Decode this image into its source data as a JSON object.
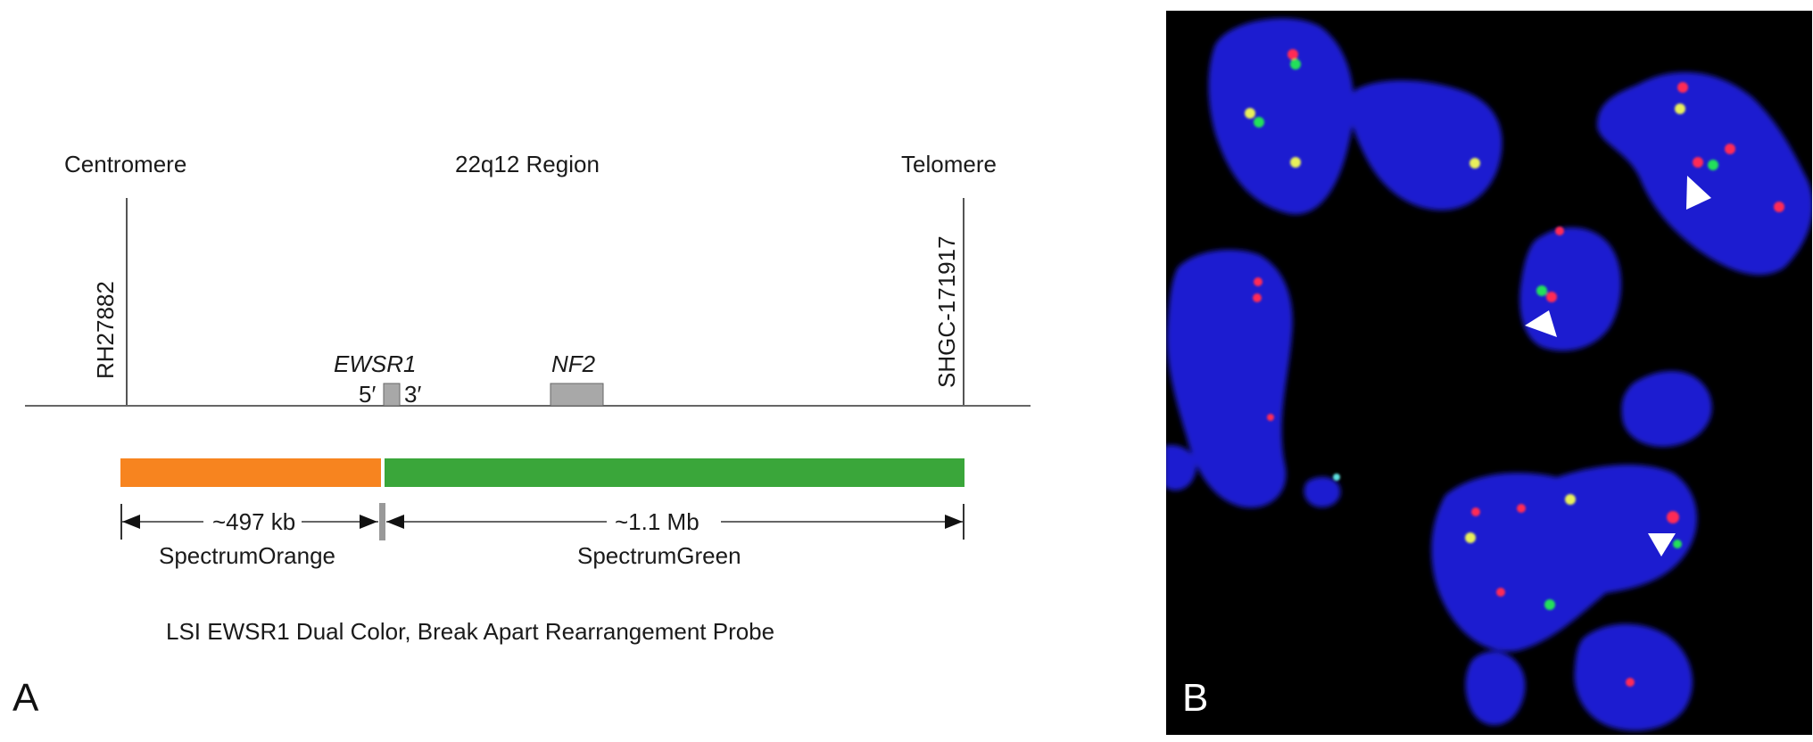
{
  "panel_a": {
    "letter": "A",
    "centromere_label": "Centromere",
    "region_label": "22q12 Region",
    "telomere_label": "Telomere",
    "left_marker": "RH27882",
    "right_marker": "SHGC-171917",
    "gene_ewsr1": "EWSR1",
    "gene_nf2": "NF2",
    "five_prime": "5′",
    "three_prime": "3′",
    "orange_size": "~497 kb",
    "green_size": "~1.1 Mb",
    "orange_probe": "SpectrumOrange",
    "green_probe": "SpectrumGreen",
    "caption": "LSI EWSR1 Dual Color, Break Apart Rearrangement Probe",
    "colors": {
      "orange": "#f7841f",
      "green": "#3aa63a",
      "gene_box": "#a8a8a8",
      "line": "#555555"
    }
  },
  "panel_b": {
    "letter": "B",
    "colors": {
      "background": "#000000",
      "nucleus": "#1a1fd0",
      "red_signal": "#ff2a55",
      "green_signal": "#22e05a",
      "fused_signal": "#e8f05a",
      "arrowhead": "#ffffff"
    }
  }
}
